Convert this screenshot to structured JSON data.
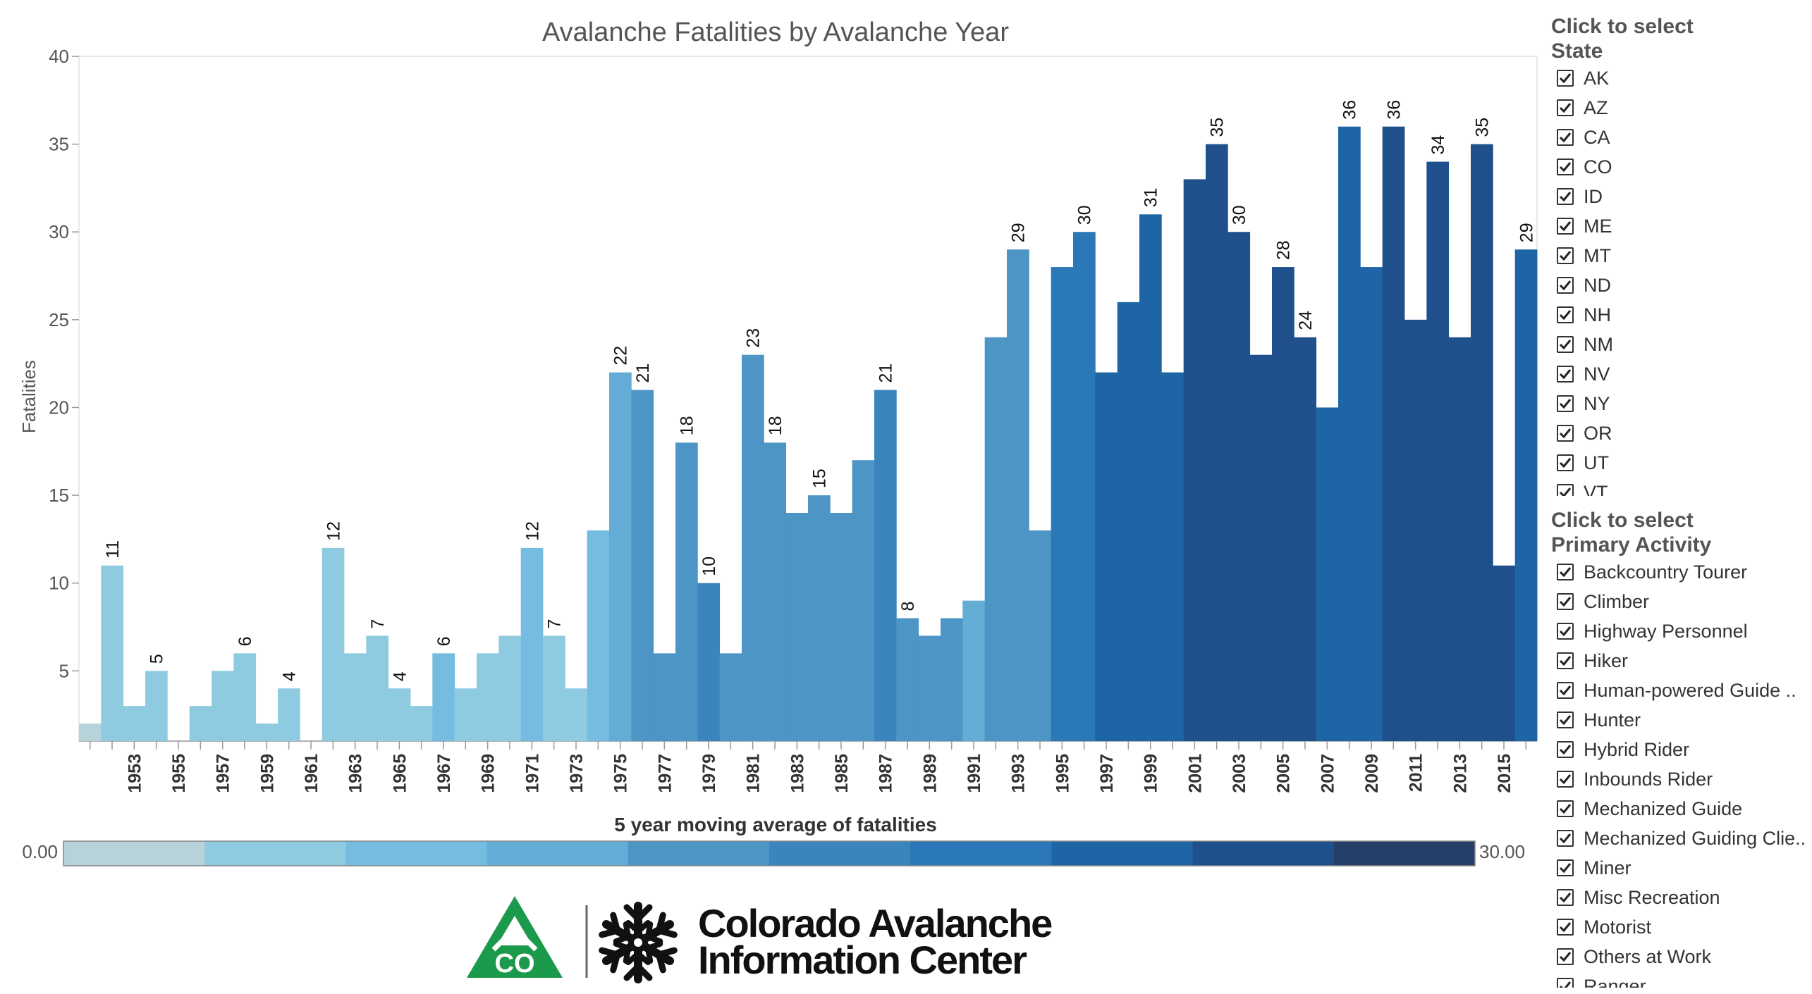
{
  "chart_data": {
    "type": "bar",
    "title": "Avalanche Fatalities by Avalanche Year",
    "ylabel": "Fatalities",
    "xlabel": "",
    "ylim": [
      1,
      40
    ],
    "yticks": [
      5,
      10,
      15,
      20,
      25,
      30,
      35,
      40
    ],
    "x": [
      1951,
      1952,
      1953,
      1954,
      1955,
      1956,
      1957,
      1958,
      1959,
      1960,
      1961,
      1962,
      1963,
      1964,
      1965,
      1966,
      1967,
      1968,
      1969,
      1970,
      1971,
      1972,
      1973,
      1974,
      1975,
      1976,
      1977,
      1978,
      1979,
      1980,
      1981,
      1982,
      1983,
      1984,
      1985,
      1986,
      1987,
      1988,
      1989,
      1990,
      1991,
      1992,
      1993,
      1994,
      1995,
      1996,
      1997,
      1998,
      1999,
      2000,
      2001,
      2002,
      2003,
      2004,
      2005,
      2006,
      2007,
      2008,
      2009,
      2010,
      2011,
      2012,
      2013,
      2014,
      2015,
      2016
    ],
    "xtick_labels": [
      "1953",
      "1955",
      "1957",
      "1959",
      "1961",
      "1963",
      "1965",
      "1967",
      "1969",
      "1971",
      "1973",
      "1975",
      "1977",
      "1979",
      "1981",
      "1983",
      "1985",
      "1987",
      "1989",
      "1991",
      "1993",
      "1995",
      "1997",
      "1999",
      "2001",
      "2003",
      "2005",
      "2007",
      "2009",
      "2011",
      "2013",
      "2015"
    ],
    "values": [
      2,
      11,
      3,
      5,
      1,
      3,
      5,
      6,
      2,
      4,
      1,
      12,
      6,
      7,
      4,
      3,
      6,
      4,
      6,
      7,
      12,
      7,
      4,
      13,
      22,
      21,
      6,
      18,
      10,
      6,
      23,
      18,
      14,
      15,
      14,
      17,
      21,
      8,
      7,
      8,
      9,
      24,
      29,
      13,
      28,
      30,
      22,
      26,
      31,
      22,
      33,
      35,
      30,
      23,
      28,
      24,
      20,
      36,
      28,
      36,
      25,
      34,
      24,
      35,
      11,
      29
    ],
    "data_labels": [
      null,
      "11",
      null,
      "5",
      null,
      null,
      null,
      "6",
      null,
      "4",
      null,
      "12",
      null,
      "7",
      "4",
      null,
      "6",
      null,
      null,
      null,
      "12",
      "7",
      null,
      null,
      "22",
      "21",
      null,
      "18",
      "10",
      null,
      "23",
      "18",
      null,
      "15",
      null,
      null,
      "21",
      "8",
      null,
      null,
      null,
      null,
      "29",
      null,
      null,
      "30",
      null,
      null,
      "31",
      null,
      null,
      "35",
      "30",
      null,
      "28",
      "24",
      null,
      "36",
      null,
      "36",
      null,
      "34",
      null,
      "35",
      null,
      "29"
    ],
    "color_bins": [
      0,
      1,
      1,
      1,
      1,
      1,
      1,
      1,
      1,
      1,
      1,
      1,
      1,
      1,
      1,
      1,
      2,
      1,
      1,
      1,
      2,
      1,
      1,
      2,
      3,
      4,
      4,
      4,
      5,
      4,
      4,
      4,
      4,
      4,
      4,
      4,
      5,
      4,
      4,
      4,
      3,
      4,
      4,
      4,
      6,
      6,
      7,
      7,
      7,
      7,
      8,
      8,
      8,
      8,
      8,
      8,
      7,
      7,
      7,
      8,
      8,
      8,
      8,
      8,
      8,
      7
    ],
    "color_legend": {
      "title": "5 year moving average of fatalities",
      "min_label": "0.00",
      "max_label": "30.00",
      "steps": [
        "#b8d2da",
        "#8fcbe0",
        "#74bde0",
        "#63acd6",
        "#4d95c4",
        "#3a85bd",
        "#2a78b7",
        "#1e65a6",
        "#1f508c",
        "#253f69"
      ]
    },
    "grid": false
  },
  "filters": {
    "state": {
      "heading_line1": "Click to select",
      "heading_line2": "State",
      "items": [
        "AK",
        "AZ",
        "CA",
        "CO",
        "ID",
        "ME",
        "MT",
        "ND",
        "NH",
        "NM",
        "NV",
        "NY",
        "OR",
        "UT",
        "VT"
      ]
    },
    "activity": {
      "heading_line1": "Click to select",
      "heading_line2": "Primary Activity",
      "items": [
        "Backcountry Tourer",
        "Climber",
        "Highway Personnel",
        "Hiker",
        "Human-powered Guide ..",
        "Hunter",
        "Hybrid Rider",
        "Inbounds Rider",
        "Mechanized Guide",
        "Mechanized Guiding Clie..",
        "Miner",
        "Misc Recreation",
        "Motorist",
        "Others at Work",
        "Ranger"
      ]
    }
  },
  "logo": {
    "badge_text": "CO",
    "line1": "Colorado Avalanche",
    "line2": "Information Center",
    "colors": {
      "green": "#1a9a4a",
      "black": "#111111"
    }
  }
}
